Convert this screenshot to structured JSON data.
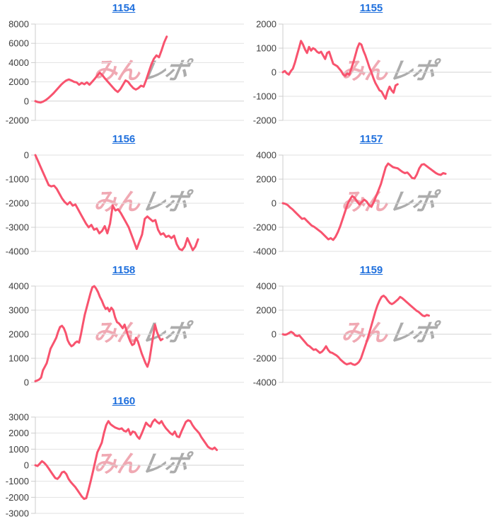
{
  "watermark": {
    "pink": "みん",
    "gray": "レポ"
  },
  "colors": {
    "line": "#f8536e",
    "grid": "#e2e2e2",
    "zero_grid": "#d2d2d2",
    "axis": "#cccccc",
    "tick_label": "#3d3d3d",
    "link": "#1e6fdd",
    "background": "#ffffff"
  },
  "chart_data": [
    {
      "type": "line",
      "title": "1154",
      "xlabel": "",
      "ylabel": "",
      "ylim": [
        -2000,
        8000
      ],
      "yticks": [
        8000,
        6000,
        4000,
        2000,
        0,
        -2000
      ],
      "grid": true,
      "legend": "none",
      "x_extent_fraction": 0.63,
      "values": [
        0,
        -100,
        -150,
        -50,
        100,
        300,
        550,
        800,
        1100,
        1400,
        1700,
        1950,
        2150,
        2250,
        2150,
        2000,
        1950,
        1700,
        1900,
        1750,
        1950,
        1700,
        2000,
        2300,
        2650,
        2950,
        2700,
        2350,
        2050,
        1750,
        1450,
        1150,
        950,
        1250,
        1700,
        2150,
        2000,
        1650,
        1350,
        1200,
        1350,
        1600,
        1500,
        2200,
        3000,
        3800,
        4400,
        4750,
        4550,
        5300,
        6100,
        6700
      ]
    },
    {
      "type": "line",
      "title": "1155",
      "xlabel": "",
      "ylabel": "",
      "ylim": [
        -2000,
        2000
      ],
      "yticks": [
        2000,
        1000,
        0,
        -1000,
        -2000
      ],
      "grid": true,
      "legend": "none",
      "x_extent_fraction": 0.55,
      "values": [
        0,
        50,
        -50,
        -100,
        50,
        150,
        400,
        700,
        1000,
        1300,
        1150,
        950,
        800,
        1050,
        900,
        1000,
        950,
        850,
        800,
        850,
        700,
        550,
        800,
        850,
        600,
        350,
        300,
        250,
        150,
        50,
        -100,
        -150,
        -50,
        -100,
        150,
        400,
        700,
        1000,
        1200,
        1150,
        900,
        700,
        450,
        200,
        0,
        -250,
        -450,
        -600,
        -750,
        -800,
        -950,
        -1100,
        -800,
        -600,
        -750,
        -850,
        -550,
        -500
      ]
    },
    {
      "type": "line",
      "title": "1156",
      "xlabel": "",
      "ylabel": "",
      "ylim": [
        -4000,
        0
      ],
      "yticks": [
        0,
        -1000,
        -2000,
        -3000,
        -4000
      ],
      "grid": true,
      "legend": "none",
      "x_extent_fraction": 0.78,
      "values": [
        0,
        -250,
        -500,
        -750,
        -1000,
        -1250,
        -1300,
        -1270,
        -1400,
        -1600,
        -1800,
        -1950,
        -2050,
        -1950,
        -2100,
        -2050,
        -2250,
        -2450,
        -2650,
        -2850,
        -3000,
        -2900,
        -3100,
        -3050,
        -3250,
        -3150,
        -2950,
        -3250,
        -2850,
        -2100,
        -2300,
        -2250,
        -2400,
        -2600,
        -2800,
        -3000,
        -3300,
        -3600,
        -3900,
        -3600,
        -3300,
        -2650,
        -2550,
        -2650,
        -2750,
        -2700,
        -3100,
        -3300,
        -3250,
        -3400,
        -3350,
        -3450,
        -3350,
        -3700,
        -3900,
        -3950,
        -3800,
        -3450,
        -3700,
        -3950,
        -3800,
        -3500
      ]
    },
    {
      "type": "line",
      "title": "1157",
      "xlabel": "",
      "ylabel": "",
      "ylim": [
        -4000,
        4000
      ],
      "yticks": [
        4000,
        2000,
        0,
        -2000,
        -4000
      ],
      "grid": true,
      "legend": "none",
      "x_extent_fraction": 0.78,
      "values": [
        0,
        -50,
        -150,
        -350,
        -500,
        -700,
        -900,
        -1100,
        -1300,
        -1250,
        -1450,
        -1650,
        -1850,
        -1950,
        -2100,
        -2250,
        -2400,
        -2600,
        -2800,
        -3000,
        -2900,
        -3050,
        -2800,
        -2400,
        -1900,
        -1300,
        -700,
        -100,
        300,
        600,
        450,
        150,
        -100,
        100,
        300,
        150,
        -150,
        -300,
        100,
        600,
        1100,
        1600,
        2300,
        3000,
        3300,
        3150,
        3000,
        2950,
        2900,
        2750,
        2600,
        2500,
        2550,
        2350,
        2100,
        2050,
        2400,
        2900,
        3200,
        3250,
        3100,
        2950,
        2800,
        2650,
        2500,
        2400,
        2350,
        2500,
        2450
      ]
    },
    {
      "type": "line",
      "title": "1158",
      "xlabel": "",
      "ylabel": "",
      "ylim": [
        0,
        4000
      ],
      "yticks": [
        4000,
        3000,
        2000,
        1000,
        0
      ],
      "grid": true,
      "legend": "none",
      "x_extent_fraction": 0.61,
      "values": [
        50,
        80,
        120,
        200,
        500,
        650,
        800,
        1100,
        1400,
        1550,
        1700,
        1850,
        2100,
        2300,
        2350,
        2250,
        2050,
        1750,
        1600,
        1500,
        1550,
        1650,
        1700,
        1650,
        2000,
        2400,
        2800,
        3100,
        3400,
        3700,
        3950,
        4000,
        3900,
        3750,
        3550,
        3400,
        3200,
        3050,
        3100,
        2950,
        3100,
        3000,
        2700,
        2500,
        2450,
        2350,
        2250,
        2400,
        2150,
        1900,
        1700,
        1550,
        1600,
        1850,
        1700,
        1450,
        1200,
        1000,
        800,
        650,
        900,
        1400,
        1900,
        2400,
        2100,
        1900,
        1750,
        1800
      ]
    },
    {
      "type": "line",
      "title": "1159",
      "xlabel": "",
      "ylabel": "",
      "ylim": [
        -4000,
        4000
      ],
      "yticks": [
        4000,
        2000,
        0,
        -2000,
        -4000
      ],
      "grid": true,
      "legend": "none",
      "x_extent_fraction": 0.7,
      "values": [
        0,
        -50,
        0,
        100,
        200,
        100,
        -100,
        -150,
        -100,
        -300,
        -500,
        -700,
        -900,
        -1000,
        -1150,
        -1300,
        -1250,
        -1400,
        -1550,
        -1450,
        -1250,
        -1000,
        -1300,
        -1500,
        -1550,
        -1650,
        -1750,
        -1900,
        -2100,
        -2250,
        -2400,
        -2500,
        -2450,
        -2400,
        -2500,
        -2550,
        -2450,
        -2300,
        -2000,
        -1500,
        -1000,
        -500,
        100,
        700,
        1300,
        1900,
        2400,
        2800,
        3100,
        3200,
        3050,
        2800,
        2600,
        2500,
        2600,
        2750,
        2900,
        3100,
        3000,
        2850,
        2700,
        2550,
        2400,
        2250,
        2100,
        1950,
        1850,
        1700,
        1550,
        1500,
        1600,
        1550
      ]
    },
    {
      "type": "line",
      "title": "1160",
      "xlabel": "",
      "ylabel": "",
      "ylim": [
        -3000,
        3000
      ],
      "yticks": [
        3000,
        2000,
        1000,
        0,
        -1000,
        -2000,
        -3000
      ],
      "grid": true,
      "legend": "none",
      "x_extent_fraction": 0.87,
      "values": [
        0,
        -50,
        100,
        250,
        150,
        0,
        -200,
        -400,
        -600,
        -800,
        -850,
        -700,
        -450,
        -400,
        -550,
        -850,
        -1050,
        -1200,
        -1350,
        -1550,
        -1750,
        -1950,
        -2100,
        -2050,
        -1550,
        -1000,
        -400,
        200,
        800,
        1100,
        1400,
        2000,
        2500,
        2750,
        2550,
        2450,
        2350,
        2300,
        2250,
        2300,
        2150,
        2100,
        2250,
        1900,
        2100,
        2050,
        1800,
        1650,
        1950,
        2300,
        2650,
        2500,
        2400,
        2700,
        2850,
        2700,
        2600,
        2750,
        2500,
        2300,
        2150,
        2000,
        1900,
        2100,
        1800,
        1750,
        2100,
        2400,
        2700,
        2800,
        2750,
        2500,
        2300,
        2150,
        2000,
        1750,
        1550,
        1350,
        1150,
        1050,
        1000,
        1100,
        950
      ]
    }
  ]
}
